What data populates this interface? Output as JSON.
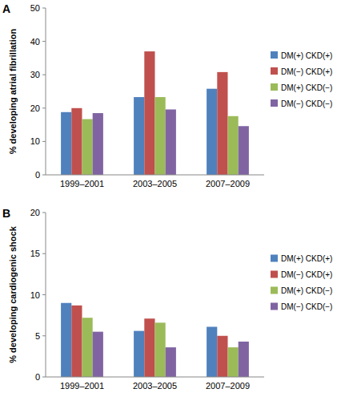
{
  "chart_data": [
    {
      "type": "bar",
      "title": "A",
      "y_label": "% developing atrial fibrillation",
      "categories": [
        "1999–2001",
        "2003–2005",
        "2007–2009"
      ],
      "series": [
        {
          "name": "DM(+) CKD(+)",
          "color": "#4f81bd",
          "values": [
            18.8,
            23.3,
            25.8
          ]
        },
        {
          "name": "DM(−) CKD(+)",
          "color": "#c0504d",
          "values": [
            20.0,
            37.0,
            30.8
          ]
        },
        {
          "name": "DM(+) CKD(−)",
          "color": "#9bbb59",
          "values": [
            16.7,
            23.3,
            17.6
          ]
        },
        {
          "name": "DM(−) CKD(−)",
          "color": "#8064a2",
          "values": [
            18.5,
            19.6,
            14.6
          ]
        }
      ],
      "ylim": [
        0,
        50
      ],
      "yticks": [
        0,
        10,
        20,
        30,
        40,
        50
      ],
      "grid": false,
      "legend": "right"
    },
    {
      "type": "bar",
      "title": "B",
      "y_label": "% developing cardiogenic shock",
      "categories": [
        "1999–2001",
        "2003–2005",
        "2007–2009"
      ],
      "series": [
        {
          "name": "DM(+) CKD(+)",
          "color": "#4f81bd",
          "values": [
            9.0,
            5.6,
            6.1
          ]
        },
        {
          "name": "DM(−) CKD(+)",
          "color": "#c0504d",
          "values": [
            8.7,
            7.1,
            5.0
          ]
        },
        {
          "name": "DM(+) CKD(−)",
          "color": "#9bbb59",
          "values": [
            7.2,
            6.6,
            3.6
          ]
        },
        {
          "name": "DM(−) CKD(−)",
          "color": "#8064a2",
          "values": [
            5.5,
            3.6,
            4.3
          ]
        }
      ],
      "ylim": [
        0,
        20
      ],
      "yticks": [
        0,
        5,
        10,
        15,
        20
      ],
      "grid": false,
      "legend": "right"
    }
  ]
}
